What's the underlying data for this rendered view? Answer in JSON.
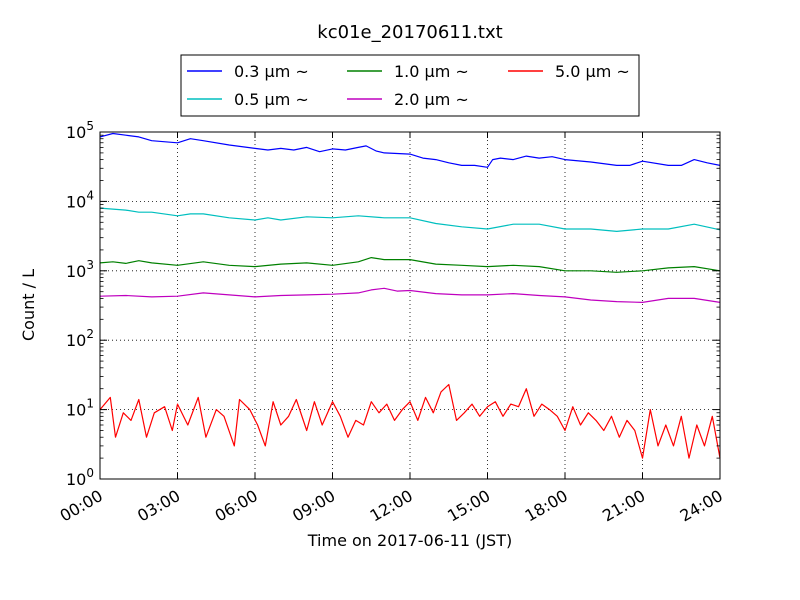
{
  "chart_data": {
    "type": "line",
    "title": "kc01e_20170611.txt",
    "xlabel": "Time on 2017-06-11 (JST)",
    "ylabel": "Count / L",
    "yscale": "log",
    "ylim": [
      1,
      100000
    ],
    "xlim_hours": [
      0,
      24
    ],
    "grid": true,
    "legend_placement": "top-center",
    "x_ticks": [
      "00:00",
      "03:00",
      "06:00",
      "09:00",
      "12:00",
      "15:00",
      "18:00",
      "21:00",
      "24:00"
    ],
    "y_ticks": [
      {
        "base": "10",
        "exp": "0",
        "value": 1
      },
      {
        "base": "10",
        "exp": "1",
        "value": 10
      },
      {
        "base": "10",
        "exp": "2",
        "value": 100
      },
      {
        "base": "10",
        "exp": "3",
        "value": 1000
      },
      {
        "base": "10",
        "exp": "4",
        "value": 10000
      },
      {
        "base": "10",
        "exp": "5",
        "value": 100000
      }
    ],
    "series": [
      {
        "name": "0.3 μm ~",
        "color": "#0000ff",
        "points": [
          [
            0,
            85000
          ],
          [
            0.5,
            95000
          ],
          [
            1,
            90000
          ],
          [
            1.5,
            85000
          ],
          [
            2,
            75000
          ],
          [
            3,
            70000
          ],
          [
            3.5,
            80000
          ],
          [
            4,
            75000
          ],
          [
            5,
            65000
          ],
          [
            6,
            58000
          ],
          [
            6.5,
            55000
          ],
          [
            7,
            58000
          ],
          [
            7.5,
            55000
          ],
          [
            8,
            60000
          ],
          [
            8.5,
            52000
          ],
          [
            9,
            57000
          ],
          [
            9.5,
            55000
          ],
          [
            10,
            60000
          ],
          [
            10.3,
            63000
          ],
          [
            10.7,
            53000
          ],
          [
            11,
            50000
          ],
          [
            12,
            48000
          ],
          [
            12.5,
            42000
          ],
          [
            13,
            40000
          ],
          [
            13.5,
            36000
          ],
          [
            14,
            33000
          ],
          [
            14.5,
            33000
          ],
          [
            15,
            31000
          ],
          [
            15.2,
            40000
          ],
          [
            15.5,
            42000
          ],
          [
            16,
            40000
          ],
          [
            16.5,
            45000
          ],
          [
            17,
            42000
          ],
          [
            17.5,
            44000
          ],
          [
            18,
            40000
          ],
          [
            19,
            37000
          ],
          [
            20,
            33000
          ],
          [
            20.5,
            33000
          ],
          [
            21,
            38000
          ],
          [
            22,
            33000
          ],
          [
            22.5,
            33000
          ],
          [
            23,
            40000
          ],
          [
            23.5,
            36000
          ],
          [
            24,
            33000
          ]
        ]
      },
      {
        "name": "0.5 μm ~",
        "color": "#00bfbf",
        "points": [
          [
            0,
            8000
          ],
          [
            1,
            7500
          ],
          [
            1.5,
            7000
          ],
          [
            2,
            7000
          ],
          [
            3,
            6200
          ],
          [
            3.5,
            6600
          ],
          [
            4,
            6600
          ],
          [
            5,
            5800
          ],
          [
            6,
            5400
          ],
          [
            6.5,
            5800
          ],
          [
            7,
            5400
          ],
          [
            8,
            6000
          ],
          [
            9,
            5800
          ],
          [
            10,
            6200
          ],
          [
            11,
            5800
          ],
          [
            12,
            5800
          ],
          [
            13,
            4800
          ],
          [
            14,
            4300
          ],
          [
            15,
            4000
          ],
          [
            16,
            4700
          ],
          [
            17,
            4700
          ],
          [
            18,
            4000
          ],
          [
            19,
            4000
          ],
          [
            20,
            3700
          ],
          [
            21,
            4000
          ],
          [
            22,
            4000
          ],
          [
            23,
            4700
          ],
          [
            24,
            3900
          ]
        ]
      },
      {
        "name": "1.0 μm ~",
        "color": "#008000",
        "points": [
          [
            0,
            1300
          ],
          [
            0.5,
            1350
          ],
          [
            1,
            1280
          ],
          [
            1.5,
            1400
          ],
          [
            2,
            1300
          ],
          [
            3,
            1200
          ],
          [
            4,
            1350
          ],
          [
            5,
            1200
          ],
          [
            6,
            1150
          ],
          [
            7,
            1250
          ],
          [
            8,
            1300
          ],
          [
            9,
            1200
          ],
          [
            10,
            1350
          ],
          [
            10.5,
            1550
          ],
          [
            11,
            1450
          ],
          [
            12,
            1450
          ],
          [
            13,
            1250
          ],
          [
            14,
            1200
          ],
          [
            15,
            1150
          ],
          [
            16,
            1200
          ],
          [
            17,
            1150
          ],
          [
            18,
            1000
          ],
          [
            19,
            1000
          ],
          [
            20,
            950
          ],
          [
            21,
            1000
          ],
          [
            22,
            1100
          ],
          [
            23,
            1150
          ],
          [
            24,
            1000
          ]
        ]
      },
      {
        "name": "2.0 μm ~",
        "color": "#bf00bf",
        "points": [
          [
            0,
            430
          ],
          [
            1,
            440
          ],
          [
            2,
            420
          ],
          [
            3,
            430
          ],
          [
            4,
            480
          ],
          [
            5,
            450
          ],
          [
            6,
            420
          ],
          [
            7,
            440
          ],
          [
            8,
            450
          ],
          [
            9,
            460
          ],
          [
            10,
            480
          ],
          [
            10.5,
            530
          ],
          [
            11,
            560
          ],
          [
            11.5,
            510
          ],
          [
            12,
            520
          ],
          [
            13,
            470
          ],
          [
            14,
            450
          ],
          [
            15,
            450
          ],
          [
            16,
            470
          ],
          [
            17,
            440
          ],
          [
            18,
            420
          ],
          [
            19,
            380
          ],
          [
            20,
            360
          ],
          [
            21,
            350
          ],
          [
            22,
            400
          ],
          [
            23,
            400
          ],
          [
            24,
            350
          ]
        ]
      },
      {
        "name": "5.0 μm ~",
        "color": "#ff0000",
        "points": [
          [
            0,
            10
          ],
          [
            0.4,
            15
          ],
          [
            0.6,
            4
          ],
          [
            0.9,
            9
          ],
          [
            1.2,
            7
          ],
          [
            1.5,
            14
          ],
          [
            1.8,
            4
          ],
          [
            2.1,
            9
          ],
          [
            2.5,
            11
          ],
          [
            2.8,
            5
          ],
          [
            3.0,
            12
          ],
          [
            3.4,
            6
          ],
          [
            3.8,
            15
          ],
          [
            4.1,
            4
          ],
          [
            4.5,
            10
          ],
          [
            4.8,
            8
          ],
          [
            5.2,
            3
          ],
          [
            5.4,
            14
          ],
          [
            5.8,
            10
          ],
          [
            6.1,
            6
          ],
          [
            6.4,
            3
          ],
          [
            6.7,
            13
          ],
          [
            7.0,
            6
          ],
          [
            7.3,
            8
          ],
          [
            7.6,
            14
          ],
          [
            8.0,
            5
          ],
          [
            8.3,
            13
          ],
          [
            8.6,
            6
          ],
          [
            9.0,
            13
          ],
          [
            9.3,
            8
          ],
          [
            9.6,
            4
          ],
          [
            9.9,
            7
          ],
          [
            10.2,
            6
          ],
          [
            10.5,
            13
          ],
          [
            10.8,
            9
          ],
          [
            11.1,
            12
          ],
          [
            11.4,
            7
          ],
          [
            11.7,
            10
          ],
          [
            12.0,
            13
          ],
          [
            12.3,
            7
          ],
          [
            12.6,
            15
          ],
          [
            12.9,
            9
          ],
          [
            13.2,
            18
          ],
          [
            13.5,
            23
          ],
          [
            13.8,
            7
          ],
          [
            14.1,
            9
          ],
          [
            14.4,
            12
          ],
          [
            14.7,
            8
          ],
          [
            15.0,
            11
          ],
          [
            15.3,
            13
          ],
          [
            15.6,
            8
          ],
          [
            15.9,
            12
          ],
          [
            16.2,
            11
          ],
          [
            16.5,
            20
          ],
          [
            16.8,
            8
          ],
          [
            17.1,
            12
          ],
          [
            17.4,
            10
          ],
          [
            17.7,
            8
          ],
          [
            18.0,
            5
          ],
          [
            18.3,
            11
          ],
          [
            18.6,
            6
          ],
          [
            18.9,
            9
          ],
          [
            19.2,
            7
          ],
          [
            19.5,
            5
          ],
          [
            19.8,
            8
          ],
          [
            20.1,
            4
          ],
          [
            20.4,
            7
          ],
          [
            20.7,
            5
          ],
          [
            21.0,
            2
          ],
          [
            21.3,
            10
          ],
          [
            21.6,
            3
          ],
          [
            21.9,
            6
          ],
          [
            22.2,
            3
          ],
          [
            22.5,
            8
          ],
          [
            22.8,
            2
          ],
          [
            23.1,
            6
          ],
          [
            23.4,
            3
          ],
          [
            23.7,
            8
          ],
          [
            24.0,
            2
          ]
        ]
      }
    ],
    "legend": [
      {
        "label": "0.3 μm ~",
        "color": "#0000ff"
      },
      {
        "label": "1.0 μm ~",
        "color": "#008000"
      },
      {
        "label": "5.0 μm ~",
        "color": "#ff0000"
      },
      {
        "label": "0.5 μm ~",
        "color": "#00bfbf"
      },
      {
        "label": "2.0 μm ~",
        "color": "#bf00bf"
      }
    ]
  }
}
